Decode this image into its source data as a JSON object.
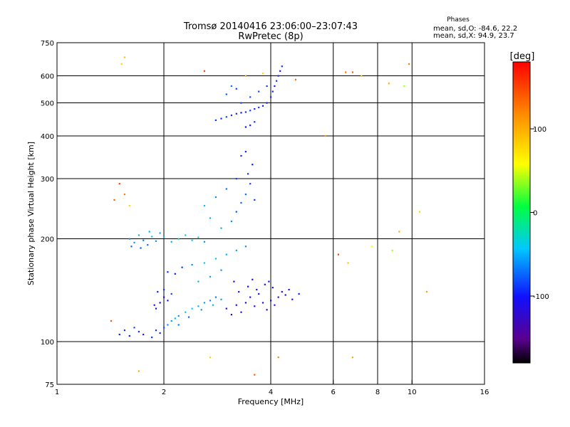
{
  "header": {
    "title": "Tromsø 20140416 23:06:00–23:07:43",
    "subtitle": "RwPretec (8p)",
    "stats_title": "Phases",
    "stats_line1": "mean, sd,O: -84.6, 22.2",
    "stats_line2": "mean, sd,X:  94.9, 23.7"
  },
  "colorbar": {
    "label": "[deg]",
    "range": [
      -180,
      180
    ],
    "ticks": [
      {
        "value": 100,
        "label": "100"
      },
      {
        "value": 0,
        "label": "0"
      },
      {
        "value": -100,
        "label": "-100"
      }
    ]
  },
  "chart_data": {
    "type": "scatter",
    "title": "Tromsø 20140416 23:06:00–23:07:43",
    "subtitle": "RwPretec (8p)",
    "xlabel": "Frequency [MHz]",
    "ylabel": "Stationary phase Virtual Height [km]",
    "xscale": "log",
    "yscale": "log",
    "xlim": [
      1,
      16
    ],
    "ylim": [
      75,
      750
    ],
    "xticks": [
      {
        "value": 1,
        "label": "1"
      },
      {
        "value": 2,
        "label": "2"
      },
      {
        "value": 4,
        "label": "4"
      },
      {
        "value": 6,
        "label": "6"
      },
      {
        "value": 8,
        "label": "8"
      },
      {
        "value": 10,
        "label": "10"
      },
      {
        "value": 16,
        "label": "16"
      }
    ],
    "yticks": [
      {
        "value": 75,
        "label": "75"
      },
      {
        "value": 100,
        "label": "100"
      },
      {
        "value": 200,
        "label": "200"
      },
      {
        "value": 300,
        "label": "300"
      },
      {
        "value": 400,
        "label": "400"
      },
      {
        "value": 500,
        "label": "500"
      },
      {
        "value": 600,
        "label": "600"
      },
      {
        "value": 750,
        "label": "750"
      }
    ],
    "grid_x": [
      2,
      4,
      6,
      8,
      10
    ],
    "grid_y": [
      100,
      200,
      300,
      400,
      500,
      600
    ],
    "color_by": "phase (deg)",
    "points": [
      [
        1.5,
        105,
        -95
      ],
      [
        1.55,
        108,
        -90
      ],
      [
        1.6,
        104,
        -100
      ],
      [
        1.65,
        110,
        -85
      ],
      [
        1.7,
        107,
        -92
      ],
      [
        1.75,
        105,
        -98
      ],
      [
        1.85,
        103,
        -90
      ],
      [
        1.9,
        108,
        -88
      ],
      [
        1.95,
        106,
        -95
      ],
      [
        2.0,
        110,
        -80
      ],
      [
        2.05,
        112,
        -60
      ],
      [
        2.1,
        115,
        -55
      ],
      [
        2.15,
        117,
        -50
      ],
      [
        2.2,
        119,
        -60
      ],
      [
        2.3,
        122,
        -45
      ],
      [
        2.4,
        125,
        -40
      ],
      [
        2.5,
        127,
        -50
      ],
      [
        2.6,
        130,
        -55
      ],
      [
        2.7,
        132,
        -60
      ],
      [
        2.8,
        135,
        -65
      ],
      [
        2.2,
        112,
        -70
      ],
      [
        2.35,
        118,
        -75
      ],
      [
        2.55,
        124,
        -60
      ],
      [
        2.75,
        128,
        -50
      ],
      [
        2.9,
        133,
        -55
      ],
      [
        1.9,
        125,
        -100
      ],
      [
        1.95,
        130,
        -105
      ],
      [
        2.0,
        135,
        -110
      ],
      [
        2.05,
        132,
        -100
      ],
      [
        1.92,
        140,
        -95
      ],
      [
        2.0,
        142,
        -90
      ],
      [
        2.1,
        138,
        -85
      ],
      [
        1.88,
        128,
        -110
      ],
      [
        1.6,
        200,
        -60
      ],
      [
        1.65,
        195,
        -55
      ],
      [
        1.7,
        205,
        -50
      ],
      [
        1.75,
        198,
        -65
      ],
      [
        1.8,
        192,
        -70
      ],
      [
        1.85,
        203,
        -45
      ],
      [
        1.9,
        197,
        -60
      ],
      [
        1.95,
        208,
        -55
      ],
      [
        2.0,
        202,
        -40
      ],
      [
        2.1,
        196,
        -50
      ],
      [
        2.2,
        200,
        -35
      ],
      [
        2.3,
        205,
        -45
      ],
      [
        2.4,
        198,
        -40
      ],
      [
        2.5,
        202,
        -30
      ],
      [
        1.62,
        190,
        -75
      ],
      [
        1.72,
        188,
        -80
      ],
      [
        1.82,
        210,
        -50
      ],
      [
        2.6,
        196,
        -60
      ],
      [
        2.05,
        160,
        -95
      ],
      [
        2.15,
        158,
        -100
      ],
      [
        2.25,
        165,
        -90
      ],
      [
        2.4,
        168,
        -60
      ],
      [
        2.6,
        170,
        -40
      ],
      [
        2.8,
        175,
        -45
      ],
      [
        3.0,
        180,
        -50
      ],
      [
        3.2,
        185,
        -55
      ],
      [
        3.4,
        190,
        -60
      ],
      [
        2.5,
        150,
        -50
      ],
      [
        2.7,
        155,
        -55
      ],
      [
        2.9,
        162,
        -60
      ],
      [
        3.0,
        125,
        -110
      ],
      [
        3.2,
        128,
        -115
      ],
      [
        3.4,
        130,
        -120
      ],
      [
        3.6,
        127,
        -110
      ],
      [
        3.8,
        130,
        -105
      ],
      [
        4.0,
        132,
        -110
      ],
      [
        4.2,
        135,
        -115
      ],
      [
        4.4,
        137,
        -110
      ],
      [
        4.6,
        133,
        -105
      ],
      [
        3.1,
        120,
        -120
      ],
      [
        3.3,
        122,
        -115
      ],
      [
        3.5,
        135,
        -110
      ],
      [
        3.7,
        138,
        -105
      ],
      [
        3.9,
        124,
        -120
      ],
      [
        4.1,
        128,
        -115
      ],
      [
        4.3,
        140,
        -110
      ],
      [
        3.25,
        140,
        -105
      ],
      [
        3.45,
        145,
        -100
      ],
      [
        3.65,
        142,
        -115
      ],
      [
        3.85,
        147,
        -110
      ],
      [
        4.05,
        144,
        -105
      ],
      [
        4.5,
        142,
        -110
      ],
      [
        4.8,
        138,
        -100
      ],
      [
        3.15,
        150,
        -110
      ],
      [
        3.55,
        152,
        -105
      ],
      [
        3.95,
        150,
        -100
      ],
      [
        3.2,
        240,
        -80
      ],
      [
        3.3,
        255,
        -75
      ],
      [
        3.4,
        270,
        -70
      ],
      [
        3.5,
        290,
        -85
      ],
      [
        3.45,
        310,
        -90
      ],
      [
        3.55,
        330,
        -100
      ],
      [
        3.3,
        350,
        -95
      ],
      [
        3.1,
        225,
        -60
      ],
      [
        2.9,
        215,
        -55
      ],
      [
        3.6,
        260,
        -90
      ],
      [
        2.7,
        230,
        -50
      ],
      [
        2.6,
        250,
        -45
      ],
      [
        3.0,
        280,
        -70
      ],
      [
        3.2,
        300,
        -85
      ],
      [
        3.4,
        360,
        -95
      ],
      [
        2.8,
        265,
        -60
      ],
      [
        2.8,
        445,
        -90
      ],
      [
        2.9,
        450,
        -95
      ],
      [
        3.0,
        455,
        -85
      ],
      [
        3.1,
        460,
        -90
      ],
      [
        3.2,
        465,
        -95
      ],
      [
        3.3,
        468,
        -100
      ],
      [
        3.4,
        470,
        -90
      ],
      [
        3.5,
        475,
        -85
      ],
      [
        3.6,
        480,
        -95
      ],
      [
        3.7,
        485,
        -90
      ],
      [
        3.8,
        490,
        -100
      ],
      [
        3.9,
        500,
        -95
      ],
      [
        4.0,
        520,
        -90
      ],
      [
        4.05,
        540,
        -95
      ],
      [
        4.1,
        560,
        -100
      ],
      [
        4.15,
        580,
        -90
      ],
      [
        4.2,
        600,
        -95
      ],
      [
        4.25,
        620,
        -100
      ],
      [
        4.3,
        640,
        -90
      ],
      [
        3.5,
        430,
        -95
      ],
      [
        3.4,
        425,
        -100
      ],
      [
        3.6,
        440,
        -90
      ],
      [
        3.3,
        500,
        -85
      ],
      [
        3.5,
        520,
        -80
      ],
      [
        3.7,
        540,
        -85
      ],
      [
        3.9,
        560,
        -90
      ],
      [
        3.0,
        530,
        -80
      ],
      [
        3.2,
        550,
        -85
      ],
      [
        3.1,
        560,
        -70
      ],
      [
        1.55,
        680,
        90
      ],
      [
        1.52,
        650,
        80
      ],
      [
        1.5,
        290,
        150
      ],
      [
        1.55,
        270,
        120
      ],
      [
        1.6,
        250,
        80
      ],
      [
        1.45,
        260,
        140
      ],
      [
        2.6,
        620,
        150
      ],
      [
        3.4,
        600,
        100
      ],
      [
        3.8,
        610,
        80
      ],
      [
        4.7,
        585,
        130
      ],
      [
        5.7,
        400,
        110
      ],
      [
        6.5,
        615,
        130
      ],
      [
        6.8,
        615,
        140
      ],
      [
        7.2,
        600,
        90
      ],
      [
        8.6,
        570,
        100
      ],
      [
        9.5,
        560,
        40
      ],
      [
        9.8,
        650,
        120
      ],
      [
        6.2,
        180,
        150
      ],
      [
        6.6,
        170,
        90
      ],
      [
        7.7,
        190,
        60
      ],
      [
        8.8,
        185,
        40
      ],
      [
        9.2,
        210,
        100
      ],
      [
        10.5,
        240,
        80
      ],
      [
        11.0,
        140,
        110
      ],
      [
        6.8,
        90,
        100
      ],
      [
        4.2,
        90,
        120
      ],
      [
        3.6,
        80,
        140
      ],
      [
        2.7,
        90,
        80
      ],
      [
        1.7,
        82,
        100
      ],
      [
        1.42,
        115,
        140
      ]
    ]
  }
}
